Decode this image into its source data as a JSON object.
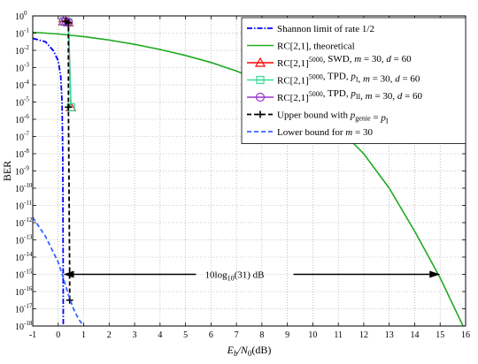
{
  "chart_data": {
    "type": "line",
    "xlabel": "E_b/N_0(dB)",
    "ylabel": "BER",
    "xlim": [
      -1,
      16
    ],
    "ylim_exponent": [
      -18,
      0
    ],
    "y_scale": "log",
    "grid": true,
    "legend_position": "top-right",
    "x_ticks": [
      "-1",
      "0",
      "1",
      "2",
      "3",
      "4",
      "5",
      "6",
      "7",
      "8",
      "9",
      "10",
      "11",
      "12",
      "13",
      "14",
      "15",
      "16"
    ],
    "y_ticks": [
      {
        "base": "10",
        "exp": "0"
      },
      {
        "base": "10",
        "exp": "-1"
      },
      {
        "base": "10",
        "exp": "-2"
      },
      {
        "base": "10",
        "exp": "-3"
      },
      {
        "base": "10",
        "exp": "-4"
      },
      {
        "base": "10",
        "exp": "-5"
      },
      {
        "base": "10",
        "exp": "-6"
      },
      {
        "base": "10",
        "exp": "-7"
      },
      {
        "base": "10",
        "exp": "-8"
      },
      {
        "base": "10",
        "exp": "-9"
      },
      {
        "base": "10",
        "exp": "-10"
      },
      {
        "base": "10",
        "exp": "-11"
      },
      {
        "base": "10",
        "exp": "-12"
      },
      {
        "base": "10",
        "exp": "-13"
      },
      {
        "base": "10",
        "exp": "-14"
      },
      {
        "base": "10",
        "exp": "-15"
      },
      {
        "base": "10",
        "exp": "-16"
      },
      {
        "base": "10",
        "exp": "-17"
      },
      {
        "base": "10",
        "exp": "-18"
      }
    ],
    "series": [
      {
        "name": "Shannon limit of rate 1/2",
        "color": "#0000ff",
        "style": "dashdot",
        "marker": "none",
        "x": [
          -1,
          -0.5,
          -0.2,
          0.0,
          0.1,
          0.15,
          0.18,
          0.19,
          0.2
        ],
        "logy": [
          -1.3,
          -1.5,
          -2.0,
          -2.6,
          -3.5,
          -5,
          -8,
          -12,
          -18
        ]
      },
      {
        "name": "RC[2,1], theoretical",
        "color": "#22aa22",
        "style": "solid",
        "marker": "none",
        "x": [
          -1,
          0,
          1,
          2,
          3,
          4,
          5,
          6,
          7,
          8,
          9,
          10,
          11,
          12,
          13,
          14,
          15,
          15.9
        ],
        "logy": [
          -0.95,
          -1.05,
          -1.2,
          -1.4,
          -1.65,
          -1.95,
          -2.3,
          -2.7,
          -3.2,
          -3.8,
          -4.5,
          -5.4,
          -6.5,
          -8.0,
          -10.0,
          -12.5,
          -15.2,
          -18
        ]
      },
      {
        "name": "RC[2,1]^5000, SWD, m = 30, d = 60",
        "color": "#ff0000",
        "style": "solid",
        "marker": "triangle",
        "x": [
          0.2,
          0.3,
          0.4,
          0.5
        ],
        "logy": [
          -0.32,
          -0.32,
          -0.38,
          -5.3
        ]
      },
      {
        "name": "RC[2,1]^5000, TPD, p_I, m = 30, d = 60",
        "color": "#33dd99",
        "style": "solid",
        "marker": "square",
        "x": [
          0.2,
          0.3,
          0.4,
          0.5
        ],
        "logy": [
          -0.32,
          -0.32,
          -0.38,
          -5.3
        ]
      },
      {
        "name": "RC[2,1]^5000, TPD, p_II, m = 30, d = 60",
        "color": "#9933cc",
        "style": "solid",
        "marker": "circle",
        "x": [
          0.2,
          0.3,
          0.4
        ],
        "logy": [
          -0.32,
          -0.32,
          -0.38
        ]
      },
      {
        "name": "Upper bound with p_genie = p_I",
        "color": "#000000",
        "style": "dashed",
        "marker": "plus",
        "x": [
          0.3,
          0.3,
          0.4,
          0.4,
          0.45,
          0.45
        ],
        "logy": [
          -0.32,
          -0.32,
          -0.4,
          -5.3,
          -15,
          -16.5
        ]
      },
      {
        "name": "Lower bound for m = 30",
        "color": "#3366ff",
        "style": "dashed",
        "marker": "none",
        "x": [
          -1,
          -0.5,
          0,
          0.2,
          0.4,
          0.6,
          0.8,
          1.0
        ],
        "logy": [
          -11.7,
          -12.8,
          -14.3,
          -15.2,
          -16.2,
          -17.0,
          -17.6,
          -18
        ]
      }
    ],
    "annotation": {
      "text_main": "10log",
      "text_sub": "10",
      "text_rest": "(31) dB",
      "arrow_from_x": 0.2,
      "arrow_to_x": 15.0,
      "arrow_logy": -15
    },
    "legend": [
      {
        "color": "#0000ff",
        "style": "dashdot",
        "marker": "none",
        "parts": [
          {
            "t": "Shannon limit of rate 1/2"
          }
        ]
      },
      {
        "color": "#22aa22",
        "style": "solid",
        "marker": "none",
        "parts": [
          {
            "t": "RC[2,1], theoretical"
          }
        ]
      },
      {
        "color": "#ff0000",
        "style": "solid",
        "marker": "triangle",
        "parts": [
          {
            "t": "RC[2,1]"
          },
          {
            "t": "5000",
            "sup": true
          },
          {
            "t": ", SWD,  "
          },
          {
            "t": "m",
            "i": true
          },
          {
            "t": " = 30,  "
          },
          {
            "t": "d",
            "i": true
          },
          {
            "t": " = 60"
          }
        ]
      },
      {
        "color": "#33dd99",
        "style": "solid",
        "marker": "square",
        "parts": [
          {
            "t": "RC[2,1]"
          },
          {
            "t": "5000",
            "sup": true
          },
          {
            "t": ", TPD,  "
          },
          {
            "t": "p",
            "i": true
          },
          {
            "t": "I",
            "sub": true
          },
          {
            "t": ",  "
          },
          {
            "t": "m",
            "i": true
          },
          {
            "t": " = 30,  "
          },
          {
            "t": "d",
            "i": true
          },
          {
            "t": " = 60"
          }
        ]
      },
      {
        "color": "#9933cc",
        "style": "solid",
        "marker": "circle",
        "parts": [
          {
            "t": "RC[2,1]"
          },
          {
            "t": "5000",
            "sup": true
          },
          {
            "t": ", TPD,  "
          },
          {
            "t": "p",
            "i": true
          },
          {
            "t": "II",
            "sub": true
          },
          {
            "t": ",  "
          },
          {
            "t": "m",
            "i": true
          },
          {
            "t": " = 30,  "
          },
          {
            "t": "d",
            "i": true
          },
          {
            "t": " = 60"
          }
        ]
      },
      {
        "color": "#000000",
        "style": "dashed",
        "marker": "plus",
        "parts": [
          {
            "t": "Upper bound with "
          },
          {
            "t": "p",
            "i": true
          },
          {
            "t": "genie",
            "sub": true
          },
          {
            "t": " = "
          },
          {
            "t": "p",
            "i": true
          },
          {
            "t": "I",
            "sub": true
          }
        ]
      },
      {
        "color": "#3366ff",
        "style": "dashed",
        "marker": "none",
        "parts": [
          {
            "t": "Lower bound for  "
          },
          {
            "t": "m",
            "i": true
          },
          {
            "t": " = 30"
          }
        ]
      }
    ]
  }
}
